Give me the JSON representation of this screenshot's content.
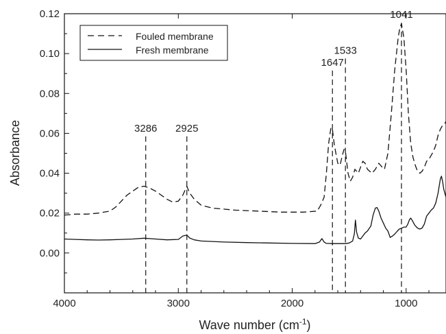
{
  "chart_data": {
    "type": "line",
    "xlabel": "Wave number (cm",
    "xlabel_sup": "-1",
    "xlabel_close": ")",
    "ylabel": "Absorbance",
    "xlim": [
      4000,
      650
    ],
    "ylim": [
      -0.02,
      0.12
    ],
    "x_ticks": [
      4000,
      3000,
      2000,
      1000
    ],
    "y_ticks": [
      "0.00",
      "0.02",
      "0.04",
      "0.06",
      "0.08",
      "0.10",
      "0.12"
    ],
    "legend_position": "top-left",
    "grid": false,
    "series": [
      {
        "name": "Fouled membrane",
        "style": "dashed",
        "color": "#111111",
        "points": [
          [
            4000,
            0.019
          ],
          [
            3900,
            0.0195
          ],
          [
            3800,
            0.0195
          ],
          [
            3700,
            0.02
          ],
          [
            3600,
            0.021
          ],
          [
            3550,
            0.023
          ],
          [
            3500,
            0.026
          ],
          [
            3450,
            0.029
          ],
          [
            3400,
            0.031
          ],
          [
            3350,
            0.033
          ],
          [
            3300,
            0.0335
          ],
          [
            3250,
            0.0325
          ],
          [
            3200,
            0.031
          ],
          [
            3150,
            0.029
          ],
          [
            3100,
            0.027
          ],
          [
            3050,
            0.0255
          ],
          [
            3000,
            0.026
          ],
          [
            2960,
            0.029
          ],
          [
            2925,
            0.0335
          ],
          [
            2900,
            0.03
          ],
          [
            2860,
            0.027
          ],
          [
            2800,
            0.024
          ],
          [
            2700,
            0.0225
          ],
          [
            2500,
            0.0215
          ],
          [
            2300,
            0.021
          ],
          [
            2100,
            0.0205
          ],
          [
            1900,
            0.0205
          ],
          [
            1780,
            0.021
          ],
          [
            1750,
            0.024
          ],
          [
            1720,
            0.028
          ],
          [
            1700,
            0.04
          ],
          [
            1680,
            0.055
          ],
          [
            1660,
            0.063
          ],
          [
            1647,
            0.062
          ],
          [
            1630,
            0.054
          ],
          [
            1600,
            0.045
          ],
          [
            1580,
            0.044
          ],
          [
            1560,
            0.049
          ],
          [
            1545,
            0.052
          ],
          [
            1533,
            0.051
          ],
          [
            1510,
            0.04
          ],
          [
            1490,
            0.036
          ],
          [
            1470,
            0.038
          ],
          [
            1450,
            0.042
          ],
          [
            1420,
            0.04
          ],
          [
            1400,
            0.043
          ],
          [
            1380,
            0.046
          ],
          [
            1360,
            0.045
          ],
          [
            1340,
            0.042
          ],
          [
            1300,
            0.04
          ],
          [
            1270,
            0.042
          ],
          [
            1240,
            0.045
          ],
          [
            1210,
            0.043
          ],
          [
            1190,
            0.042
          ],
          [
            1160,
            0.05
          ],
          [
            1130,
            0.07
          ],
          [
            1100,
            0.092
          ],
          [
            1070,
            0.108
          ],
          [
            1055,
            0.113
          ],
          [
            1041,
            0.115
          ],
          [
            1020,
            0.108
          ],
          [
            1000,
            0.092
          ],
          [
            980,
            0.07
          ],
          [
            960,
            0.055
          ],
          [
            940,
            0.048
          ],
          [
            920,
            0.044
          ],
          [
            900,
            0.041
          ],
          [
            880,
            0.04
          ],
          [
            860,
            0.041
          ],
          [
            840,
            0.043
          ],
          [
            820,
            0.046
          ],
          [
            800,
            0.047
          ],
          [
            780,
            0.049
          ],
          [
            760,
            0.051
          ],
          [
            740,
            0.054
          ],
          [
            720,
            0.059
          ],
          [
            700,
            0.062
          ],
          [
            680,
            0.064
          ],
          [
            660,
            0.065
          ],
          [
            650,
            0.066
          ]
        ]
      },
      {
        "name": "Fresh membrane",
        "style": "solid",
        "color": "#111111",
        "points": [
          [
            4000,
            0.007
          ],
          [
            3900,
            0.0068
          ],
          [
            3800,
            0.0066
          ],
          [
            3700,
            0.0065
          ],
          [
            3600,
            0.0066
          ],
          [
            3500,
            0.0068
          ],
          [
            3400,
            0.007
          ],
          [
            3300,
            0.0074
          ],
          [
            3200,
            0.007
          ],
          [
            3100,
            0.0066
          ],
          [
            3000,
            0.0068
          ],
          [
            2960,
            0.0085
          ],
          [
            2925,
            0.009
          ],
          [
            2900,
            0.0075
          ],
          [
            2860,
            0.0066
          ],
          [
            2800,
            0.006
          ],
          [
            2600,
            0.0055
          ],
          [
            2400,
            0.0052
          ],
          [
            2200,
            0.005
          ],
          [
            2000,
            0.0048
          ],
          [
            1800,
            0.0047
          ],
          [
            1760,
            0.0055
          ],
          [
            1740,
            0.0072
          ],
          [
            1720,
            0.0055
          ],
          [
            1700,
            0.0048
          ],
          [
            1647,
            0.0047
          ],
          [
            1600,
            0.0047
          ],
          [
            1533,
            0.0047
          ],
          [
            1500,
            0.005
          ],
          [
            1470,
            0.006
          ],
          [
            1455,
            0.0095
          ],
          [
            1445,
            0.0165
          ],
          [
            1435,
            0.0105
          ],
          [
            1420,
            0.0075
          ],
          [
            1400,
            0.007
          ],
          [
            1380,
            0.0085
          ],
          [
            1360,
            0.01
          ],
          [
            1340,
            0.011
          ],
          [
            1310,
            0.0135
          ],
          [
            1290,
            0.019
          ],
          [
            1270,
            0.0225
          ],
          [
            1255,
            0.0228
          ],
          [
            1240,
            0.021
          ],
          [
            1220,
            0.0175
          ],
          [
            1200,
            0.015
          ],
          [
            1180,
            0.0125
          ],
          [
            1160,
            0.011
          ],
          [
            1140,
            0.0078
          ],
          [
            1120,
            0.0085
          ],
          [
            1100,
            0.0095
          ],
          [
            1080,
            0.0108
          ],
          [
            1060,
            0.012
          ],
          [
            1041,
            0.0124
          ],
          [
            1020,
            0.013
          ],
          [
            1000,
            0.013
          ],
          [
            985,
            0.0145
          ],
          [
            970,
            0.0168
          ],
          [
            960,
            0.0175
          ],
          [
            945,
            0.0162
          ],
          [
            925,
            0.014
          ],
          [
            900,
            0.0125
          ],
          [
            880,
            0.012
          ],
          [
            860,
            0.0125
          ],
          [
            840,
            0.0145
          ],
          [
            820,
            0.0185
          ],
          [
            800,
            0.02
          ],
          [
            780,
            0.0215
          ],
          [
            760,
            0.0225
          ],
          [
            740,
            0.025
          ],
          [
            720,
            0.03
          ],
          [
            700,
            0.037
          ],
          [
            690,
            0.0385
          ],
          [
            680,
            0.036
          ],
          [
            670,
            0.032
          ],
          [
            660,
            0.03
          ],
          [
            650,
            0.028
          ]
        ]
      }
    ],
    "annotations": [
      {
        "label": "3286",
        "x": 3286,
        "y_top": 0.0585
      },
      {
        "label": "2925",
        "x": 2925,
        "y_top": 0.0585
      },
      {
        "label": "1647",
        "x": 1647,
        "y_top": 0.0915
      },
      {
        "label": "1533",
        "x": 1533,
        "y_top": 0.0975
      },
      {
        "label": "1041",
        "x": 1041,
        "y_top": 0.1155
      }
    ]
  }
}
